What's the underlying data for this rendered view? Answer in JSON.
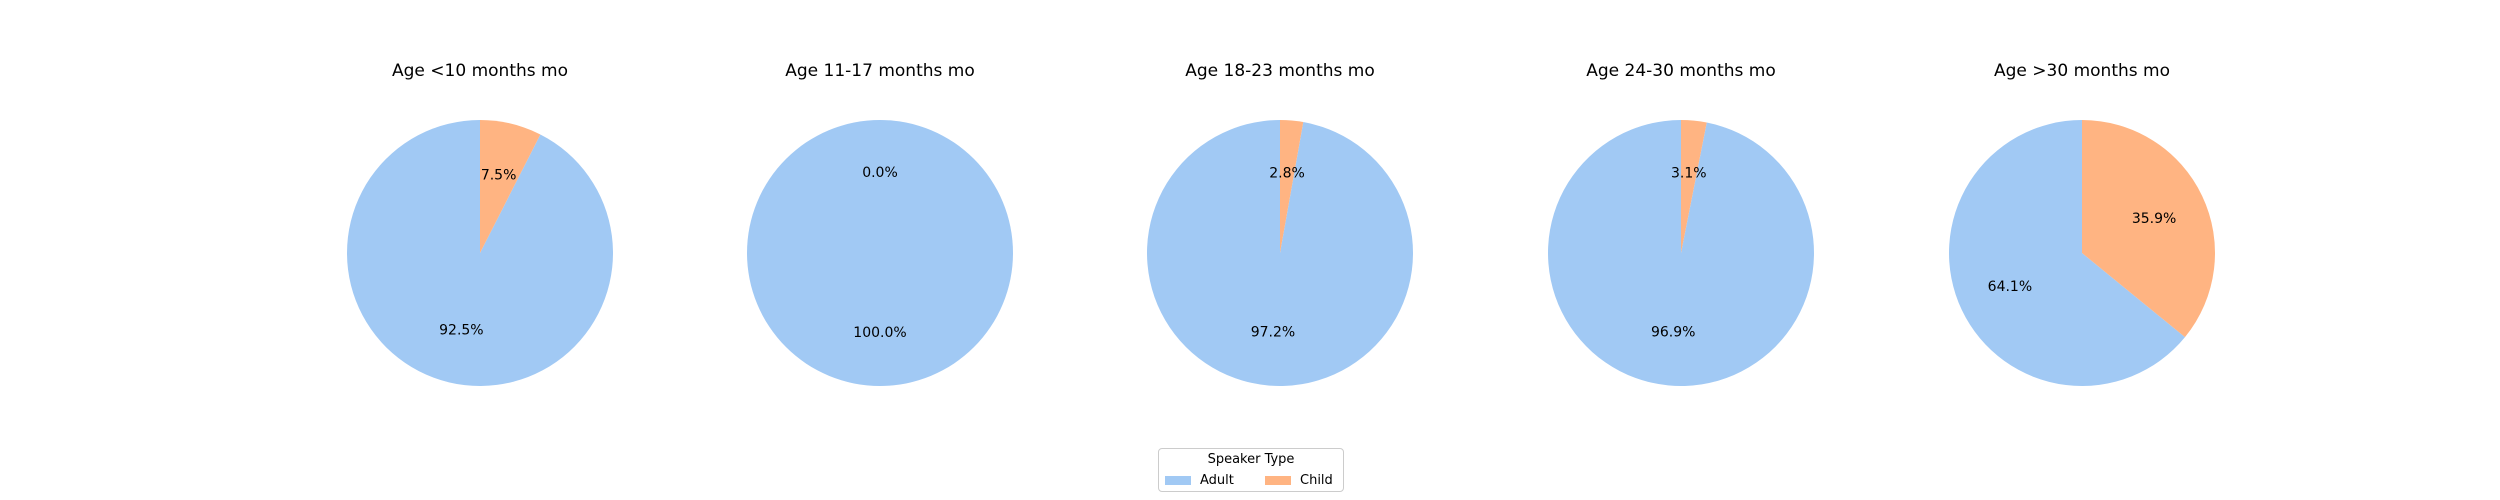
{
  "chart_data": [
    {
      "type": "pie",
      "title": "Age <10 months mo",
      "labels": [
        "Adult",
        "Child"
      ],
      "values": [
        92.5,
        7.5
      ],
      "value_labels": [
        "92.5%",
        "7.5%"
      ]
    },
    {
      "type": "pie",
      "title": "Age 11-17 months mo",
      "labels": [
        "Adult",
        "Child"
      ],
      "values": [
        100.0,
        0.0
      ],
      "value_labels": [
        "100.0%",
        "0.0%"
      ]
    },
    {
      "type": "pie",
      "title": "Age 18-23 months mo",
      "labels": [
        "Adult",
        "Child"
      ],
      "values": [
        97.2,
        2.8
      ],
      "value_labels": [
        "97.2%",
        "2.8%"
      ]
    },
    {
      "type": "pie",
      "title": "Age 24-30 months mo",
      "labels": [
        "Adult",
        "Child"
      ],
      "values": [
        96.9,
        3.1
      ],
      "value_labels": [
        "96.9%",
        "3.1%"
      ]
    },
    {
      "type": "pie",
      "title": "Age >30 months mo",
      "labels": [
        "Adult",
        "Child"
      ],
      "values": [
        64.1,
        35.9
      ],
      "value_labels": [
        "64.1%",
        "35.9%"
      ]
    }
  ],
  "legend": {
    "title": "Speaker Type",
    "placement": "bottom-center",
    "items": [
      {
        "label": "Adult",
        "color": "#a1c9f4"
      },
      {
        "label": "Child",
        "color": "#ffb482"
      }
    ]
  }
}
